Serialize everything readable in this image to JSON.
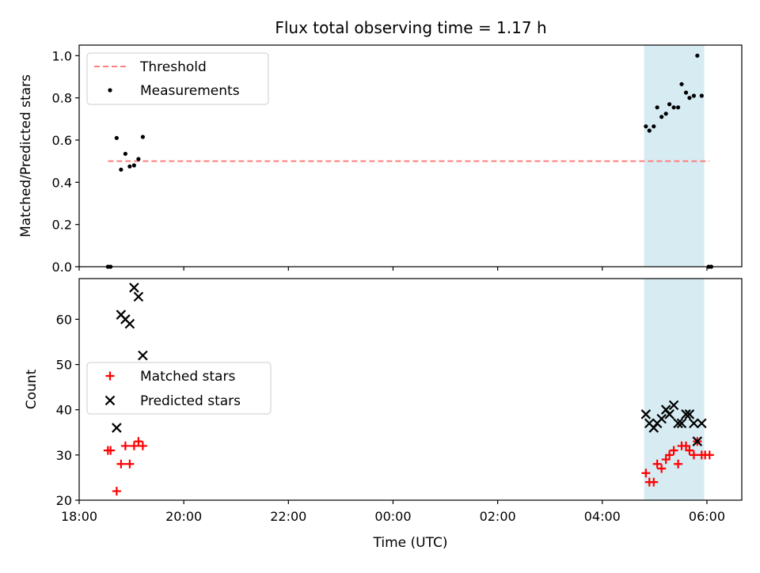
{
  "title": "Flux total observing time = 1.17 h",
  "colors": {
    "threshold": "#ff7f7f",
    "measurement": "#000000",
    "matched": "#ff0000",
    "predicted": "#000000",
    "span_fill": "#add8e6"
  },
  "chart_data": [
    {
      "type": "scatter",
      "position": "top",
      "xlabel": "",
      "ylabel": "Matched/Predicted stars",
      "xlim": [
        "18:00",
        "06:40"
      ],
      "ylim": [
        0,
        1.05
      ],
      "yticks": [
        "0.0",
        "0.2",
        "0.4",
        "0.6",
        "0.8",
        "1.0"
      ],
      "legend_position": "upper-left",
      "shaded_span": [
        "04:48",
        "05:57"
      ],
      "threshold": {
        "name": "Threshold",
        "value": 0.5,
        "x_range": [
          "18:33",
          "06:03"
        ]
      },
      "series": [
        {
          "name": "Measurements",
          "marker": "dot",
          "points": [
            [
              "18:33",
              0.0
            ],
            [
              "18:36",
              0.0
            ],
            [
              "18:43",
              0.61
            ],
            [
              "18:48",
              0.46
            ],
            [
              "18:53",
              0.535
            ],
            [
              "18:58",
              0.475
            ],
            [
              "19:03",
              0.48
            ],
            [
              "19:08",
              0.51
            ],
            [
              "19:13",
              0.615
            ],
            [
              "04:50",
              0.665
            ],
            [
              "04:54",
              0.645
            ],
            [
              "04:59",
              0.665
            ],
            [
              "05:03",
              0.755
            ],
            [
              "05:08",
              0.71
            ],
            [
              "05:13",
              0.725
            ],
            [
              "05:17",
              0.77
            ],
            [
              "05:22",
              0.755
            ],
            [
              "05:27",
              0.755
            ],
            [
              "05:31",
              0.865
            ],
            [
              "05:36",
              0.825
            ],
            [
              "05:40",
              0.8
            ],
            [
              "05:45",
              0.81
            ],
            [
              "05:49",
              1.0
            ],
            [
              "05:54",
              0.81
            ],
            [
              "06:02",
              0.0
            ],
            [
              "06:05",
              0.0
            ]
          ]
        }
      ]
    },
    {
      "type": "scatter",
      "position": "bottom",
      "xlabel": "Time (UTC)",
      "ylabel": "Count",
      "xlim": [
        "18:00",
        "06:40"
      ],
      "ylim": [
        20,
        69
      ],
      "xticks": [
        "18:00",
        "20:00",
        "22:00",
        "00:00",
        "02:00",
        "04:00",
        "06:00"
      ],
      "yticks": [
        "20",
        "30",
        "40",
        "50",
        "60"
      ],
      "legend_position": "center-left",
      "shaded_span": [
        "04:48",
        "05:57"
      ],
      "series": [
        {
          "name": "Matched stars",
          "marker": "plus",
          "points": [
            [
              "18:33",
              31
            ],
            [
              "18:36",
              31
            ],
            [
              "18:43",
              22
            ],
            [
              "18:48",
              28
            ],
            [
              "18:53",
              32
            ],
            [
              "18:58",
              28
            ],
            [
              "19:03",
              32
            ],
            [
              "19:08",
              33
            ],
            [
              "19:13",
              32
            ],
            [
              "04:50",
              26
            ],
            [
              "04:54",
              24
            ],
            [
              "04:59",
              24
            ],
            [
              "05:03",
              28
            ],
            [
              "05:08",
              27
            ],
            [
              "05:13",
              29
            ],
            [
              "05:17",
              30
            ],
            [
              "05:22",
              31
            ],
            [
              "05:27",
              28
            ],
            [
              "05:31",
              32
            ],
            [
              "05:36",
              32
            ],
            [
              "05:40",
              31
            ],
            [
              "05:45",
              30
            ],
            [
              "05:49",
              33
            ],
            [
              "05:54",
              30
            ],
            [
              "05:58",
              30
            ],
            [
              "06:03",
              30
            ]
          ]
        },
        {
          "name": "Predicted stars",
          "marker": "x",
          "points": [
            [
              "18:43",
              36
            ],
            [
              "18:48",
              61
            ],
            [
              "18:53",
              60
            ],
            [
              "18:58",
              59
            ],
            [
              "19:03",
              67
            ],
            [
              "19:08",
              65
            ],
            [
              "19:13",
              52
            ],
            [
              "04:50",
              39
            ],
            [
              "04:54",
              37
            ],
            [
              "04:59",
              36
            ],
            [
              "05:03",
              37
            ],
            [
              "05:08",
              38
            ],
            [
              "05:13",
              40
            ],
            [
              "05:17",
              39
            ],
            [
              "05:22",
              41
            ],
            [
              "05:27",
              37
            ],
            [
              "05:31",
              37
            ],
            [
              "05:36",
              39
            ],
            [
              "05:40",
              39
            ],
            [
              "05:45",
              37
            ],
            [
              "05:49",
              33
            ],
            [
              "05:54",
              37
            ]
          ]
        }
      ]
    }
  ]
}
